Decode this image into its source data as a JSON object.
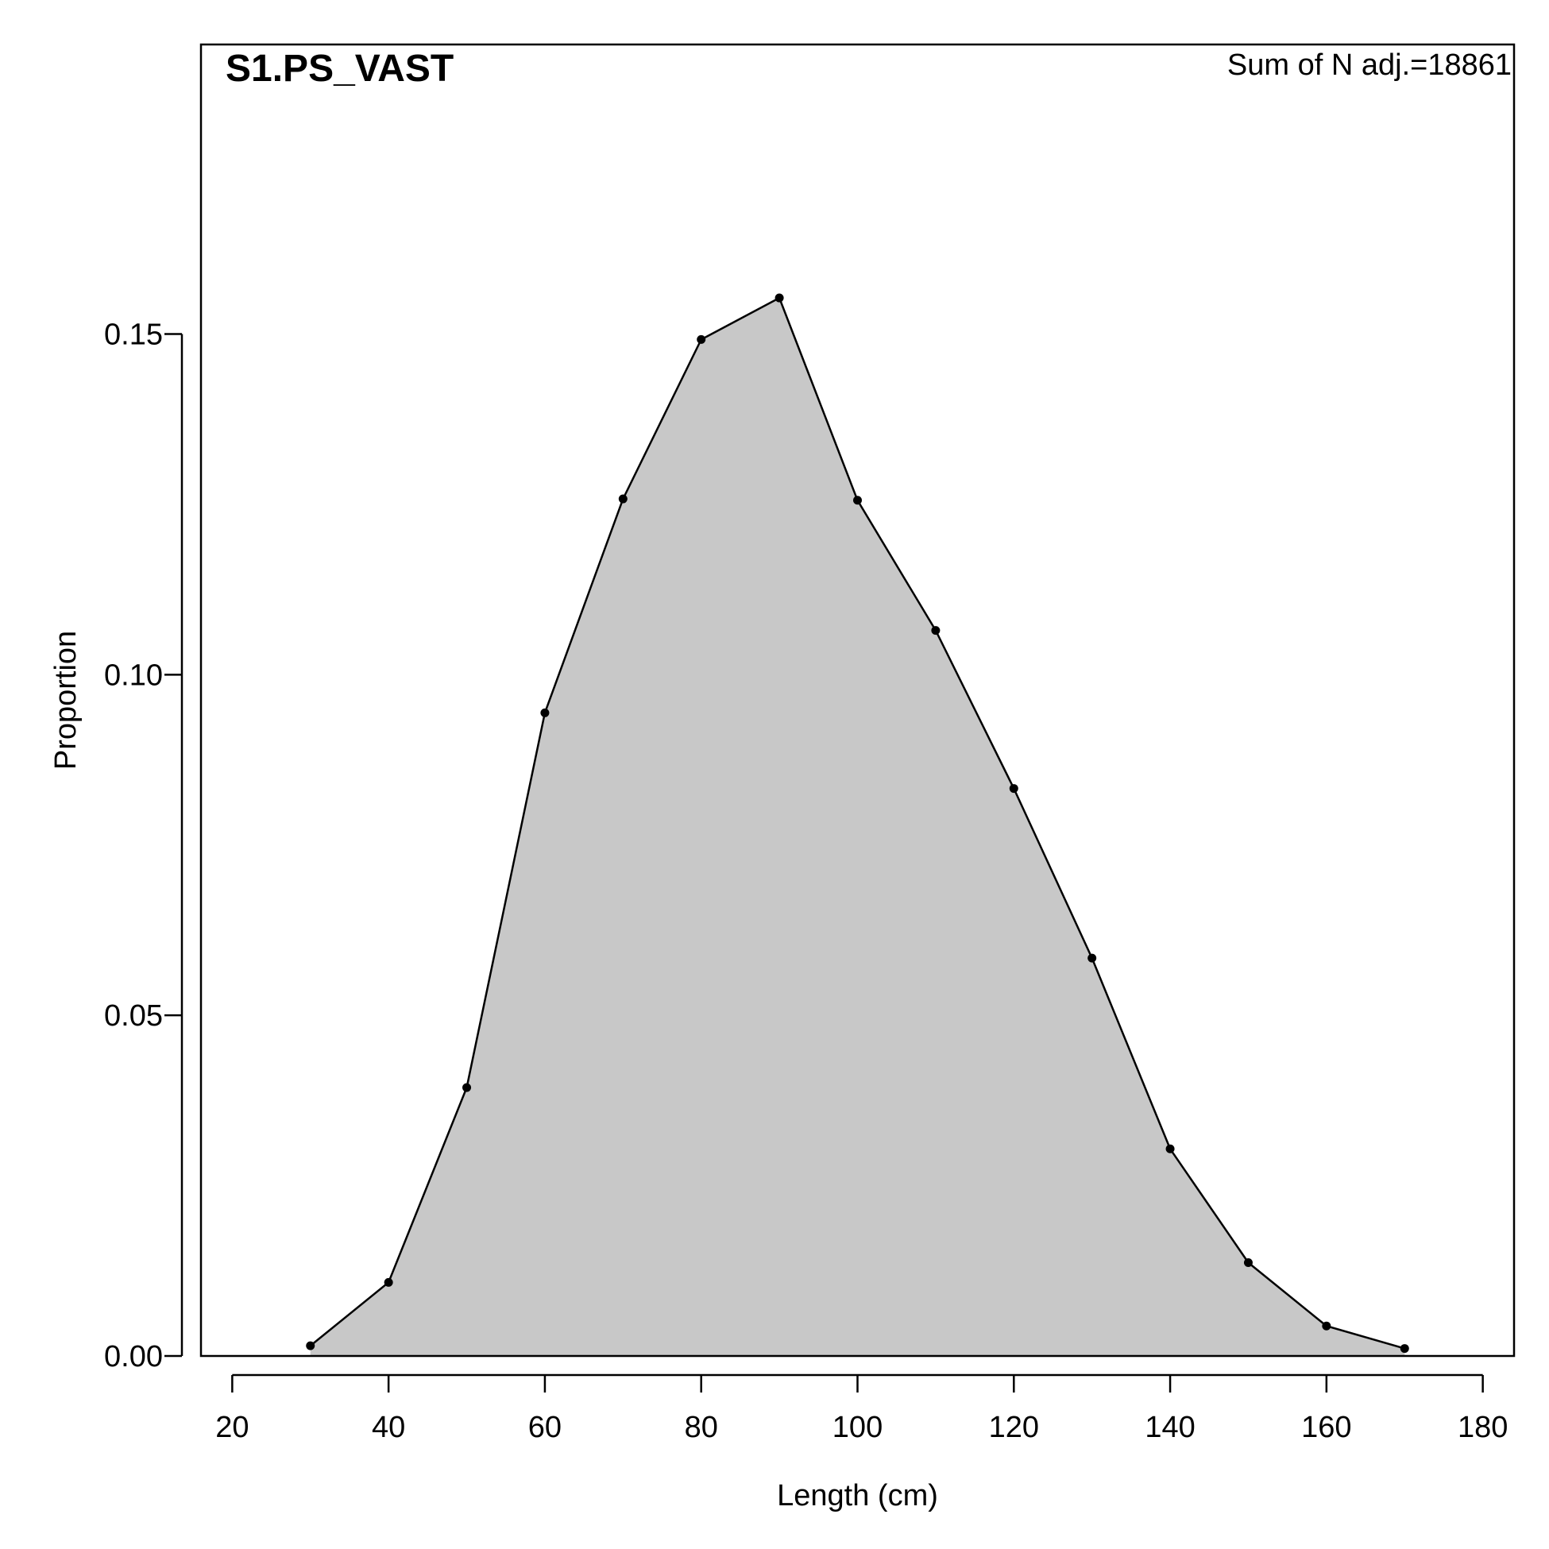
{
  "chart_data": {
    "type": "area",
    "title": "S1.PS_VAST",
    "annotation": "Sum of N adj.=18861",
    "xlabel": "Length (cm)",
    "ylabel": "Proportion",
    "xlim": [
      16,
      184
    ],
    "ylim": [
      0,
      0.1925
    ],
    "x_ticks": [
      20,
      40,
      60,
      80,
      100,
      120,
      140,
      160,
      180
    ],
    "x_tick_labels": [
      "20",
      "40",
      "60",
      "80",
      "100",
      "120",
      "140",
      "160",
      "180"
    ],
    "y_ticks": [
      0,
      0.05,
      0.1,
      0.15
    ],
    "y_tick_labels": [
      "0.00",
      "0.05",
      "0.10",
      "0.15"
    ],
    "x": [
      30,
      40,
      50,
      60,
      70,
      80,
      90,
      100,
      110,
      120,
      130,
      140,
      150,
      160,
      170
    ],
    "y": [
      0.0015,
      0.0108,
      0.0394,
      0.0944,
      0.1258,
      0.1492,
      0.1553,
      0.1256,
      0.1065,
      0.0833,
      0.0584,
      0.0304,
      0.0137,
      0.0044,
      0.0011
    ],
    "fill_color": "#c8c8c8",
    "line_color": "#000000",
    "grid": false,
    "legend": "none"
  }
}
